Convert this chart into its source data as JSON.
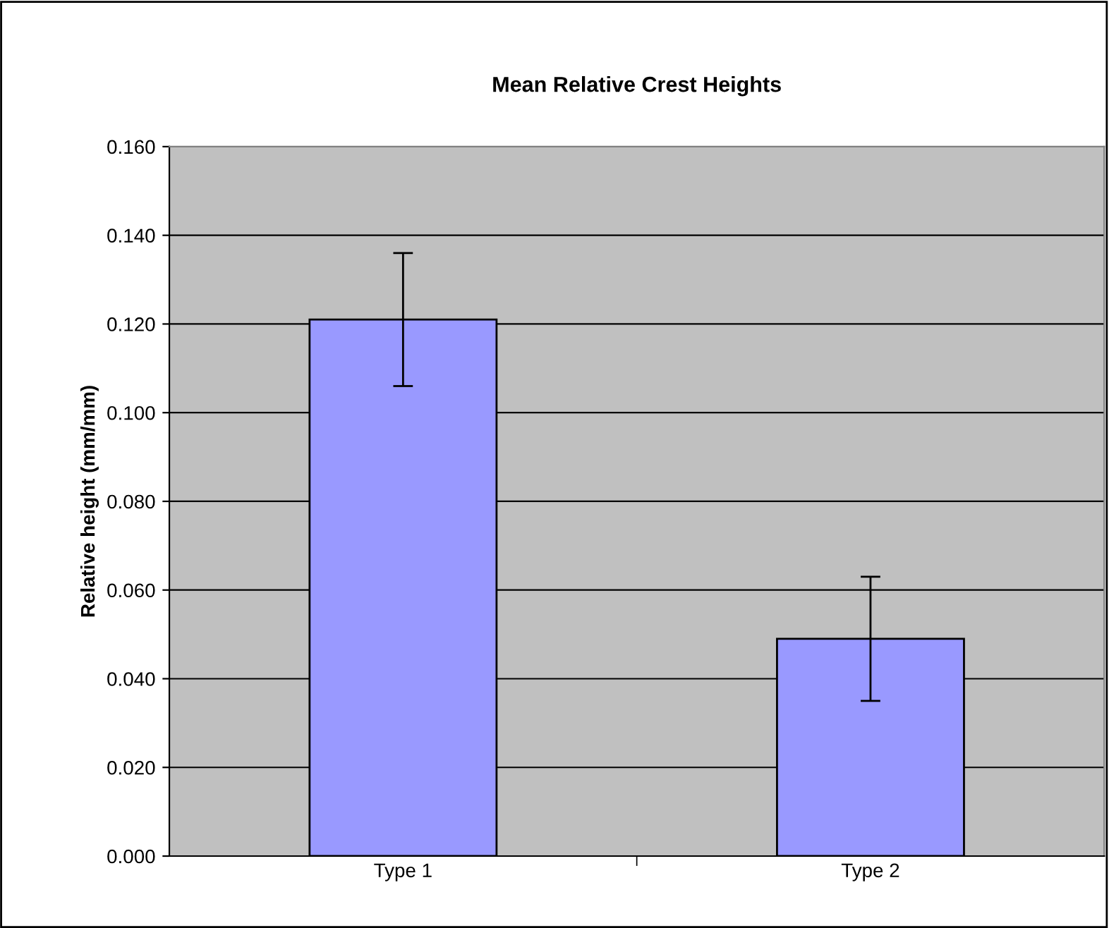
{
  "chart_data": {
    "type": "bar",
    "title": "Mean Relative Crest Heights",
    "ylabel": "Relative height (mm/mm)",
    "categories": [
      "Type 1",
      "Type 2"
    ],
    "values": [
      0.121,
      0.049
    ],
    "errors": [
      0.015,
      0.014
    ],
    "color": "#9999ff",
    "ylim": [
      0,
      0.16
    ],
    "yticks": [
      {
        "value": 0,
        "label": "0.000"
      },
      {
        "value": 0.02,
        "label": "0.020"
      },
      {
        "value": 0.04,
        "label": "0.040"
      },
      {
        "value": 0.06,
        "label": "0.060"
      },
      {
        "value": 0.08,
        "label": "0.080"
      },
      {
        "value": 0.1,
        "label": "0.100"
      },
      {
        "value": 0.12,
        "label": "0.120"
      },
      {
        "value": 0.14,
        "label": "0.140"
      },
      {
        "value": 0.16,
        "label": "0.160"
      }
    ],
    "grid": "y",
    "legend": false
  }
}
